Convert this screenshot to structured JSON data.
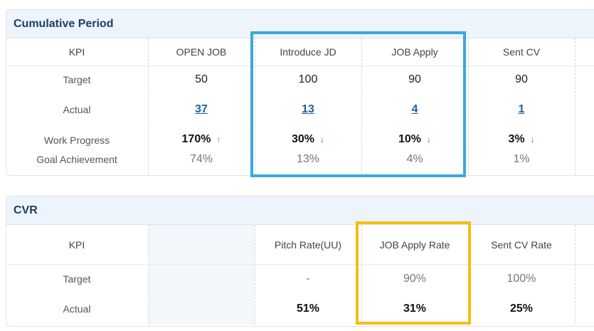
{
  "cumulative": {
    "title": "Cumulative Period",
    "headers": [
      "KPI",
      "OPEN JOB",
      "Introduce JD",
      "JOB Apply",
      "Sent CV"
    ],
    "row_labels": {
      "target": "Target",
      "actual": "Actual",
      "progress": "Work Progress",
      "achievement": "Goal Achievement"
    },
    "columns": [
      {
        "target": "50",
        "actual": "37",
        "progress": "170%",
        "trend": "up",
        "achievement": "74%"
      },
      {
        "target": "100",
        "actual": "13",
        "progress": "30%",
        "trend": "down",
        "achievement": "13%"
      },
      {
        "target": "90",
        "actual": "4",
        "progress": "10%",
        "trend": "down",
        "achievement": "4%"
      },
      {
        "target": "90",
        "actual": "1",
        "progress": "3%",
        "trend": "down",
        "achievement": "1%"
      }
    ],
    "arrow_up": "↑",
    "arrow_down": "↓"
  },
  "cvr": {
    "title": "CVR",
    "headers": [
      "KPI",
      "",
      "Pitch Rate(UU)",
      "JOB Apply Rate",
      "Sent CV Rate"
    ],
    "row_labels": {
      "target": "Target",
      "actual": "Actual"
    },
    "columns": [
      {
        "target": "-",
        "actual": "51%"
      },
      {
        "target": "90%",
        "actual": "31%"
      },
      {
        "target": "100%",
        "actual": "25%"
      }
    ]
  },
  "colors": {
    "header_bg": "#eef4fb",
    "title": "#1b3f6b",
    "link": "#1d5fa8",
    "trend_up": "#1aa39b",
    "trend_down": "#e03131",
    "highlight_blue": "#3aa8dd",
    "highlight_yellow": "#f5bd16"
  }
}
